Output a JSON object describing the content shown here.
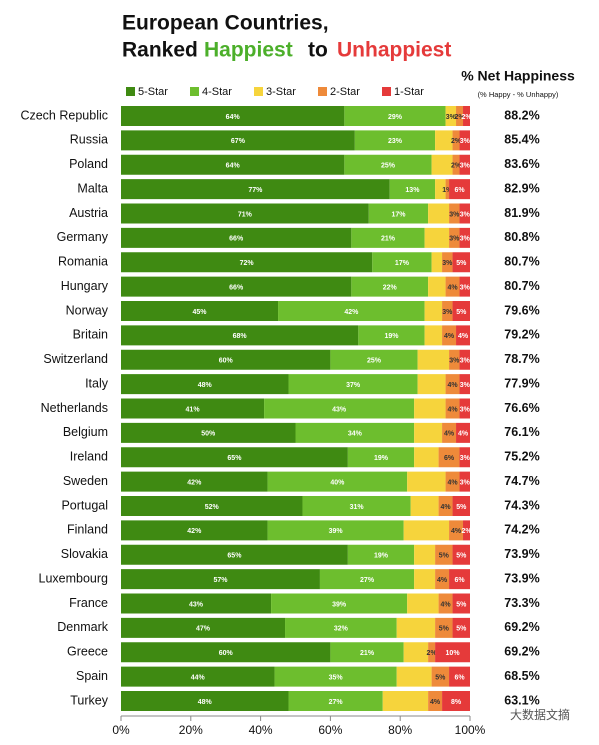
{
  "chart_data": {
    "type": "stacked-bar-horizontal",
    "title": [
      "European Countries,",
      "Ranked",
      "Happiest",
      "to",
      "Unhappiest"
    ],
    "categories": [
      "Czech Republic",
      "Russia",
      "Poland",
      "Malta",
      "Austria",
      "Germany",
      "Romania",
      "Hungary",
      "Norway",
      "Britain",
      "Switzerland",
      "Italy",
      "Netherlands",
      "Belgium",
      "Ireland",
      "Sweden",
      "Portugal",
      "Finland",
      "Slovakia",
      "Luxembourg",
      "France",
      "Denmark",
      "Greece",
      "Spain",
      "Turkey"
    ],
    "series": [
      {
        "name": "5-Star",
        "color": "#3f8a12",
        "values": [
          64,
          67,
          64,
          77,
          71,
          66,
          72,
          66,
          45,
          68,
          60,
          48,
          41,
          50,
          65,
          42,
          52,
          42,
          65,
          57,
          43,
          47,
          60,
          44,
          48
        ],
        "value_labels": [
          "64%",
          "67%",
          "64%",
          "77%",
          "71%",
          "66%",
          "72%",
          "66%",
          "45%",
          "68%",
          "60%",
          "48%",
          "41%",
          "50%",
          "65%",
          "42%",
          "52%",
          "42%",
          "65%",
          "57%",
          "43%",
          "47%",
          "60%",
          "44%",
          "48%"
        ]
      },
      {
        "name": "4-Star",
        "color": "#6dbe2e",
        "values": [
          29,
          23,
          25,
          13,
          17,
          21,
          17,
          22,
          42,
          19,
          25,
          37,
          43,
          34,
          19,
          40,
          31,
          39,
          19,
          27,
          39,
          32,
          21,
          35,
          27
        ],
        "value_labels": [
          "29%",
          "23%",
          "25%",
          "13%",
          "17%",
          "21%",
          "17%",
          "22%",
          "42%",
          "19%",
          "25%",
          "37%",
          "43%",
          "34%",
          "19%",
          "40%",
          "31%",
          "39%",
          "19%",
          "27%",
          "39%",
          "32%",
          "21%",
          "35%",
          "27%"
        ]
      },
      {
        "name": "3-Star",
        "color": "#f6d43c",
        "values": [
          3,
          5,
          6,
          3,
          6,
          7,
          3,
          5,
          5,
          5,
          9,
          8,
          9,
          8,
          7,
          11,
          8,
          13,
          6,
          6,
          9,
          11,
          7,
          10,
          13
        ],
        "value_labels": [
          "3%",
          null,
          null,
          null,
          null,
          null,
          null,
          null,
          null,
          null,
          null,
          null,
          null,
          null,
          null,
          null,
          null,
          null,
          null,
          null,
          null,
          null,
          null,
          null,
          null
        ]
      },
      {
        "name": "2-Star",
        "color": "#ee8a3a",
        "values": [
          2,
          2,
          2,
          1,
          3,
          3,
          3,
          4,
          3,
          4,
          3,
          4,
          4,
          4,
          6,
          4,
          4,
          4,
          5,
          4,
          4,
          5,
          2,
          5,
          4
        ],
        "value_labels": [
          "2%",
          "2%",
          "2%",
          "1%",
          "3%",
          "3%",
          "3%",
          "4%",
          "3%",
          "4%",
          "3%",
          "4%",
          "4%",
          "4%",
          "6%",
          "4%",
          "4%",
          "4%",
          "5%",
          "4%",
          "4%",
          "5%",
          "2%",
          "5%",
          "4%"
        ]
      },
      {
        "name": "1-Star",
        "color": "#e53a3a",
        "values": [
          2,
          3,
          3,
          6,
          3,
          3,
          5,
          3,
          5,
          4,
          3,
          3,
          3,
          4,
          3,
          3,
          5,
          2,
          5,
          6,
          5,
          5,
          10,
          6,
          8
        ],
        "value_labels": [
          "2%",
          "3%",
          "3%",
          "6%",
          "3%",
          "3%",
          "5%",
          "3%",
          "5%",
          "4%",
          "3%",
          "3%",
          "3%",
          "4%",
          "3%",
          "3%",
          "5%",
          "2%",
          "5%",
          "6%",
          "5%",
          "5%",
          "10%",
          "6%",
          "8%"
        ]
      }
    ],
    "net_happiness": {
      "title": "% Net Happiness",
      "subtitle": "(% Happy - % Unhappy)",
      "values": [
        88.2,
        85.4,
        83.6,
        82.9,
        81.9,
        80.8,
        80.7,
        80.7,
        79.6,
        79.2,
        78.7,
        77.9,
        76.6,
        76.1,
        75.2,
        74.7,
        74.3,
        74.2,
        73.9,
        73.9,
        73.3,
        69.2,
        69.2,
        68.5,
        63.1
      ],
      "value_labels": [
        "88.2%",
        "85.4%",
        "83.6%",
        "82.9%",
        "81.9%",
        "80.8%",
        "80.7%",
        "80.7%",
        "79.6%",
        "79.2%",
        "78.7%",
        "77.9%",
        "76.6%",
        "76.1%",
        "75.2%",
        "74.7%",
        "74.3%",
        "74.2%",
        "73.9%",
        "73.9%",
        "73.3%",
        "69.2%",
        "69.2%",
        "68.5%",
        "63.1%"
      ]
    },
    "xlim": [
      0,
      100
    ],
    "xticks": [
      {
        "value": 0,
        "label": "0%"
      },
      {
        "value": 20,
        "label": "20%"
      },
      {
        "value": 40,
        "label": "40%"
      },
      {
        "value": 60,
        "label": "60%"
      },
      {
        "value": 80,
        "label": "80%"
      },
      {
        "value": 100,
        "label": "100%"
      }
    ],
    "legend": "top",
    "watermark": "大数据文摘"
  }
}
